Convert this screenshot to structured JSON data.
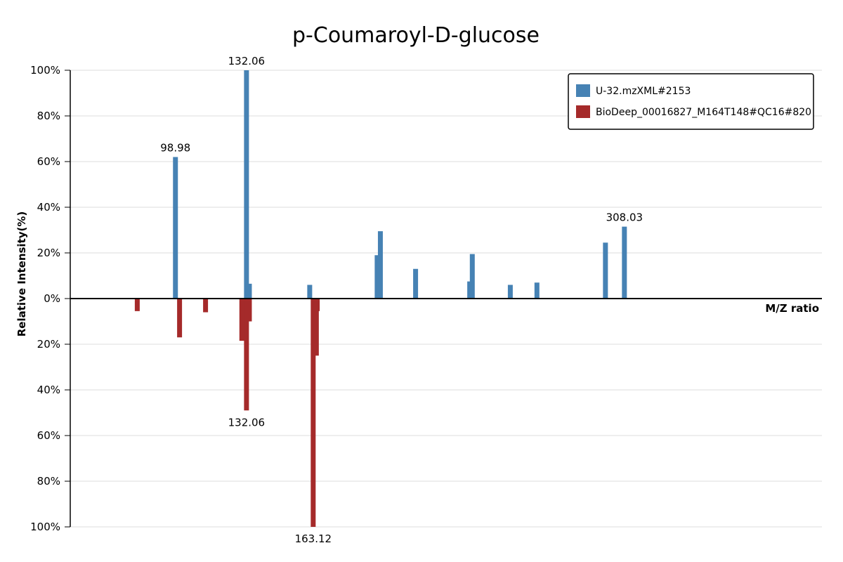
{
  "chart_data": {
    "type": "bar",
    "title": "p-Coumaroyl-D-glucose",
    "xlabel": "M/Z ratio",
    "ylabel": "Relative Intensity(%)",
    "ylim": [
      -100,
      100
    ],
    "xlim": [
      50,
      400
    ],
    "grid": true,
    "legend_position": "top-right",
    "yticks": [
      {
        "value": 100,
        "label": "100%"
      },
      {
        "value": 80,
        "label": "80%"
      },
      {
        "value": 60,
        "label": "60%"
      },
      {
        "value": 40,
        "label": "40%"
      },
      {
        "value": 20,
        "label": "20%"
      },
      {
        "value": 0,
        "label": "0%"
      },
      {
        "value": -20,
        "label": "20%"
      },
      {
        "value": -40,
        "label": "40%"
      },
      {
        "value": -60,
        "label": "60%"
      },
      {
        "value": -80,
        "label": "80%"
      },
      {
        "value": -100,
        "label": "100%"
      }
    ],
    "series": [
      {
        "name": "U-32.mzXML#2153",
        "color": "#4682b4",
        "points": [
          {
            "mz": 98.98,
            "intensity": 62,
            "label": "98.98"
          },
          {
            "mz": 132.06,
            "intensity": 100,
            "label": "132.06"
          },
          {
            "mz": 133.4,
            "intensity": 6.5
          },
          {
            "mz": 161.5,
            "intensity": 6
          },
          {
            "mz": 192.9,
            "intensity": 19
          },
          {
            "mz": 194.4,
            "intensity": 29.5
          },
          {
            "mz": 210.8,
            "intensity": 13
          },
          {
            "mz": 236.0,
            "intensity": 7.5
          },
          {
            "mz": 237.2,
            "intensity": 19.5
          },
          {
            "mz": 254.9,
            "intensity": 6
          },
          {
            "mz": 267.3,
            "intensity": 7
          },
          {
            "mz": 308.03,
            "intensity": 31.5,
            "label": "308.03"
          },
          {
            "mz": 299.2,
            "intensity": 24.5
          }
        ]
      },
      {
        "name": "BioDeep_00016827_M164T148#QC16#820",
        "color": "#a52a2a",
        "points": [
          {
            "mz": 81.2,
            "intensity": 5.5
          },
          {
            "mz": 100.9,
            "intensity": 17
          },
          {
            "mz": 113.0,
            "intensity": 6
          },
          {
            "mz": 129.9,
            "intensity": 18.5
          },
          {
            "mz": 132.06,
            "intensity": 49,
            "label": "132.06"
          },
          {
            "mz": 133.4,
            "intensity": 10
          },
          {
            "mz": 163.12,
            "intensity": 100,
            "label": "163.12"
          },
          {
            "mz": 164.6,
            "intensity": 25
          },
          {
            "mz": 165.0,
            "intensity": 5.5
          }
        ]
      }
    ]
  }
}
